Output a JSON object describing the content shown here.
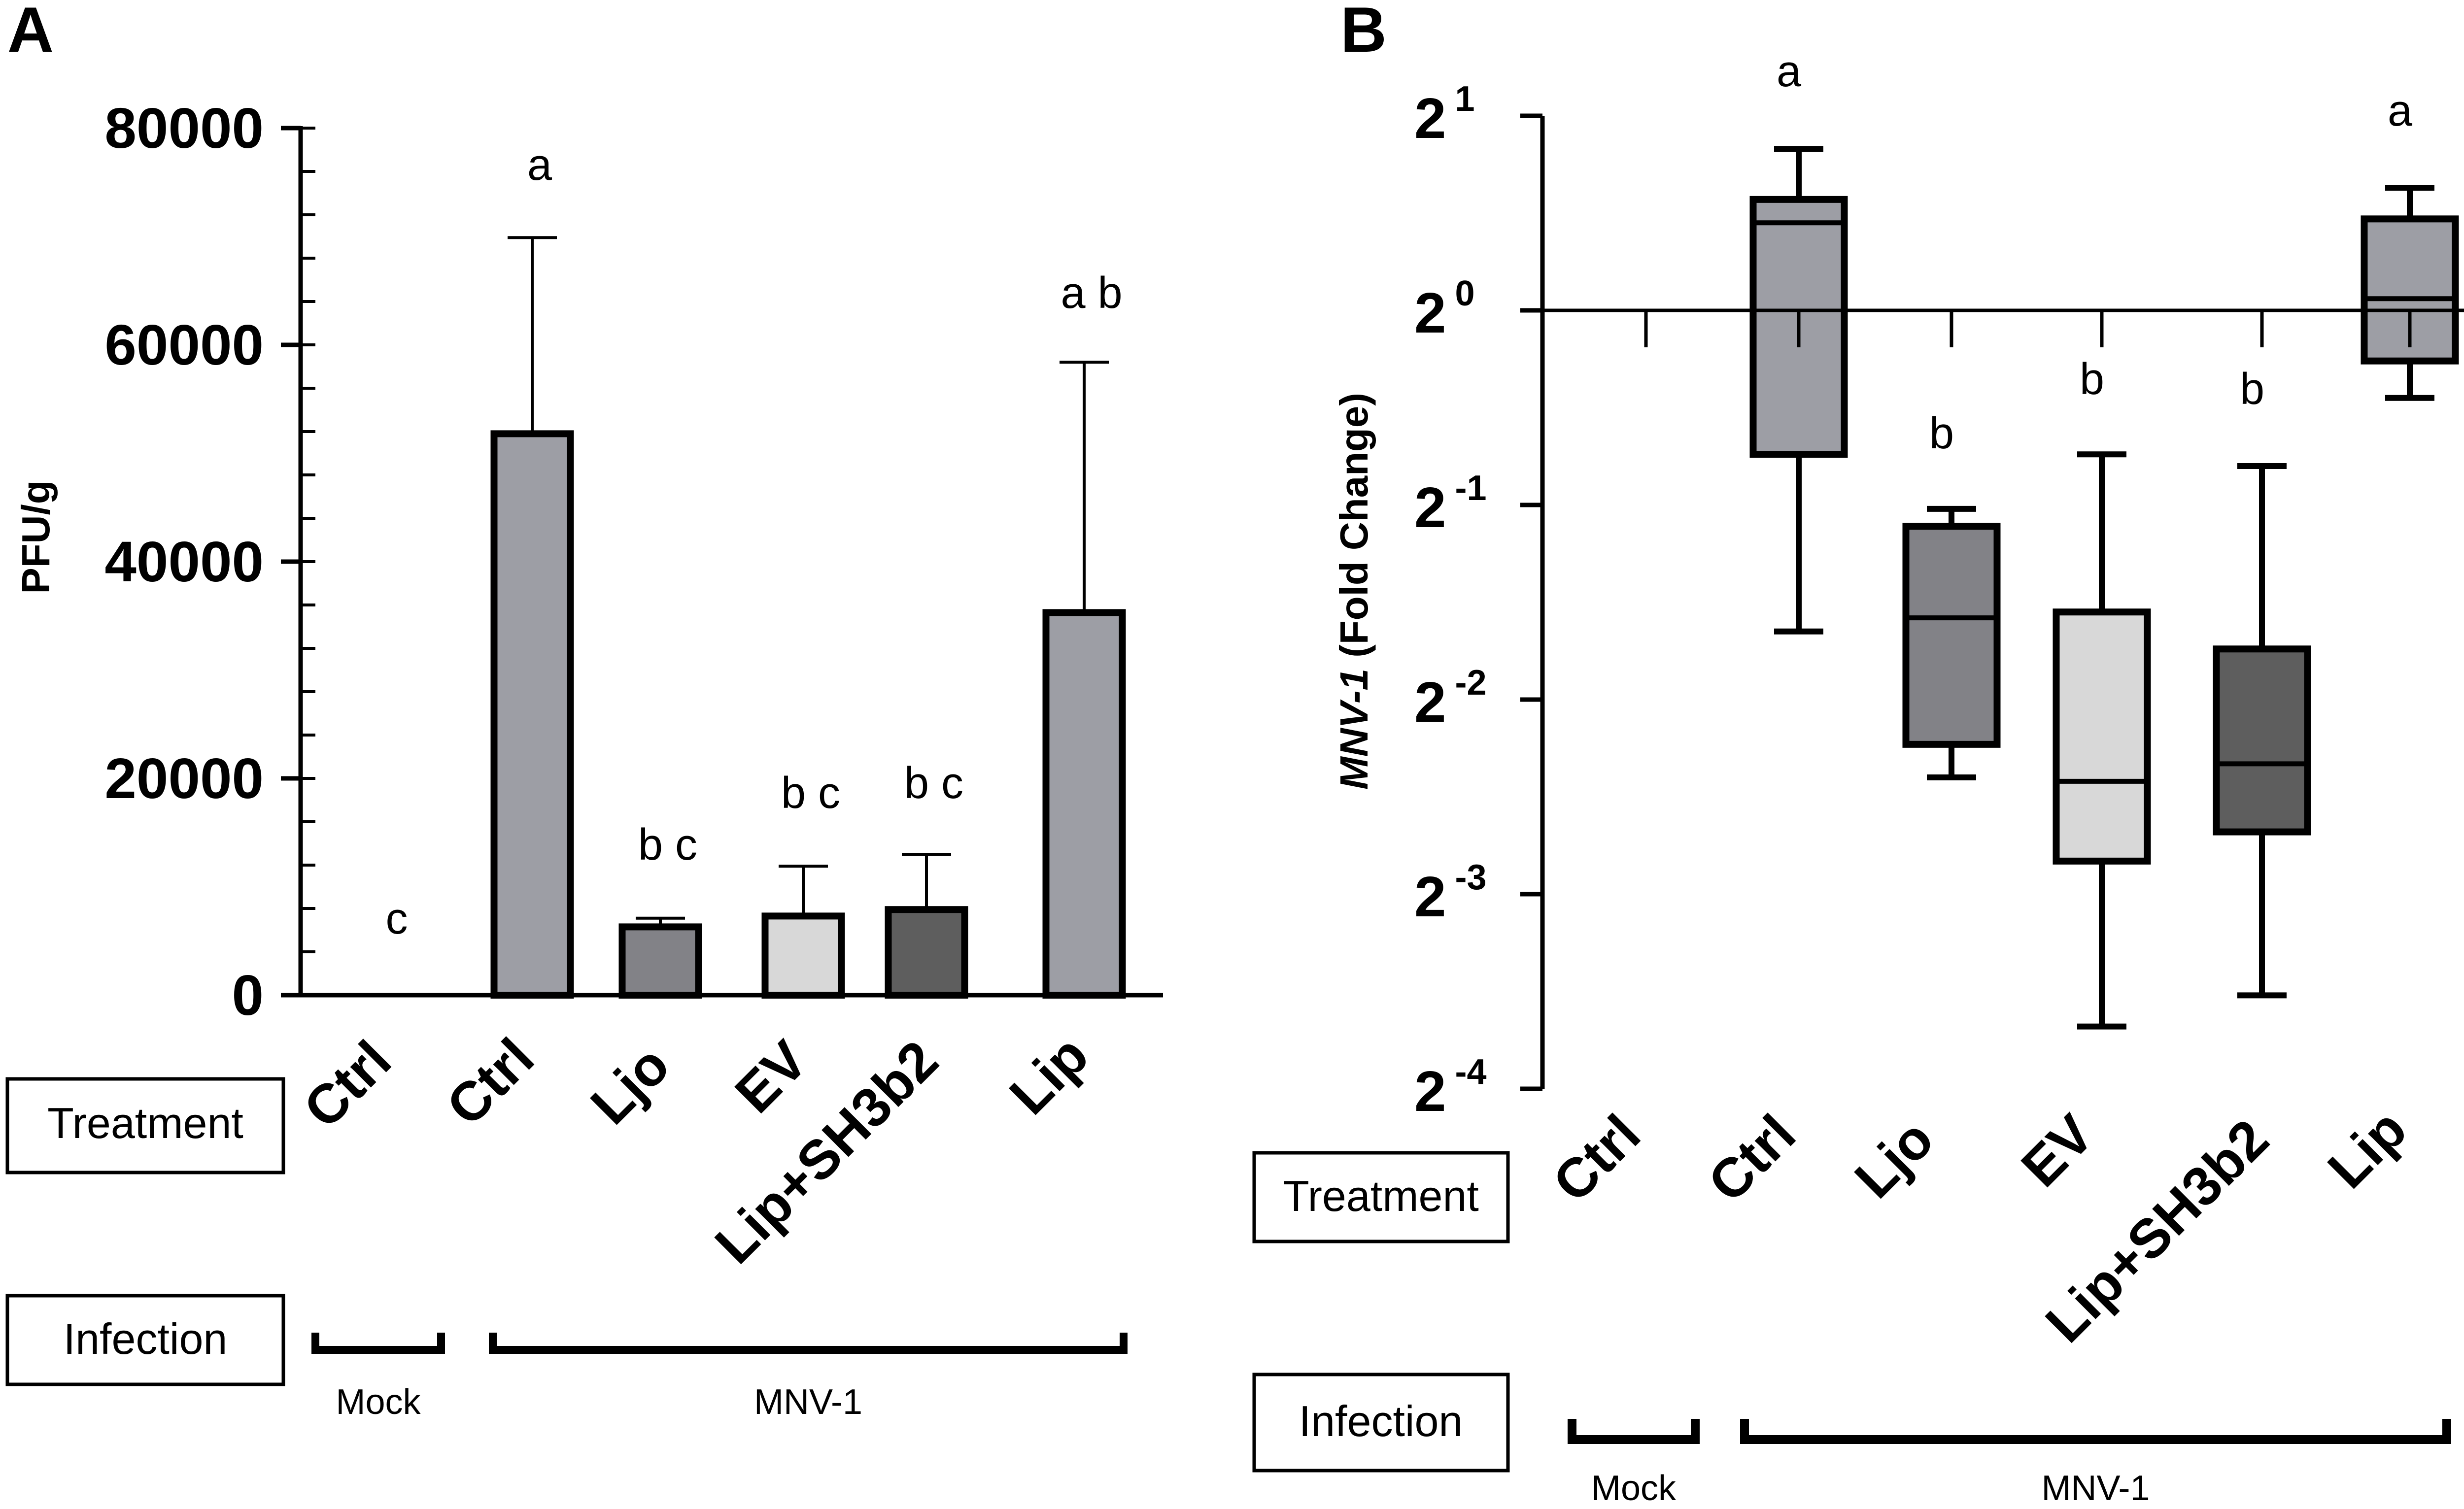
{
  "chart_data": [
    {
      "type": "bar",
      "panel": "A",
      "ylabel": "PFU/g",
      "ylim": [
        0,
        80000
      ],
      "yticks": [
        "0",
        "20000",
        "40000",
        "60000",
        "80000"
      ],
      "categories": [
        "Ctrl",
        "Ctrl",
        "Ljo",
        "EV",
        "Lip+SH3b2",
        "Lip"
      ],
      "values": [
        0,
        51800,
        6300,
        7300,
        7900,
        35300
      ],
      "error_upper": [
        0,
        69900,
        7100,
        11900,
        13000,
        58400
      ],
      "significance": [
        "c",
        "a",
        "b c",
        "b c",
        "b c",
        "a b"
      ],
      "colors": [
        "#9d9ea5",
        "#9d9ea5",
        "#828287",
        "#d8d8d8",
        "#5e5e5e",
        "#9d9ea5"
      ],
      "row_labels": {
        "treatment": "Treatment",
        "infection": "Infection"
      },
      "groups": [
        {
          "name": "Mock",
          "from": 0,
          "to": 0
        },
        {
          "name": "MNV-1",
          "from": 1,
          "to": 5
        }
      ]
    },
    {
      "type": "box",
      "panel": "B",
      "ylabel_italic": "MNV-1",
      "ylabel_rest": " (Fold Change)",
      "scale": "log2",
      "ylim_exp": [
        -4,
        1
      ],
      "ytick_base": "2",
      "ytick_exponents": [
        "1",
        "0",
        "-1",
        "-2",
        "-3",
        "-4"
      ],
      "categories": [
        "Ctrl",
        "Ctrl",
        "Ljo",
        "EV",
        "Lip+SH3b2",
        "Lip"
      ],
      "boxes": [
        null,
        {
          "min": -1.65,
          "q1": -0.74,
          "median": 0.45,
          "q3": 0.57,
          "max": 0.83
        },
        {
          "min": -2.4,
          "q1": -2.23,
          "median": -1.58,
          "q3": -1.11,
          "max": -1.02
        },
        {
          "min": -3.68,
          "q1": -2.83,
          "median": -2.42,
          "q3": -1.55,
          "max": -0.74
        },
        {
          "min": -3.52,
          "q1": -2.68,
          "median": -2.33,
          "q3": -1.74,
          "max": -0.8
        },
        {
          "min": -0.45,
          "q1": -0.26,
          "median": 0.06,
          "q3": 0.47,
          "max": 0.63
        }
      ],
      "significance": [
        "",
        "a",
        "b",
        "b",
        "b",
        "a"
      ],
      "colors": [
        "#9d9ea5",
        "#9d9ea5",
        "#828287",
        "#d8d8d8",
        "#5e5e5e",
        "#9d9ea5"
      ],
      "row_labels": {
        "treatment": "Treatment",
        "infection": "Infection"
      },
      "groups": [
        {
          "name": "Mock",
          "from": 0,
          "to": 0
        },
        {
          "name": "MNV-1",
          "from": 1,
          "to": 5
        }
      ]
    }
  ],
  "panel_letters": [
    "A",
    "B"
  ]
}
